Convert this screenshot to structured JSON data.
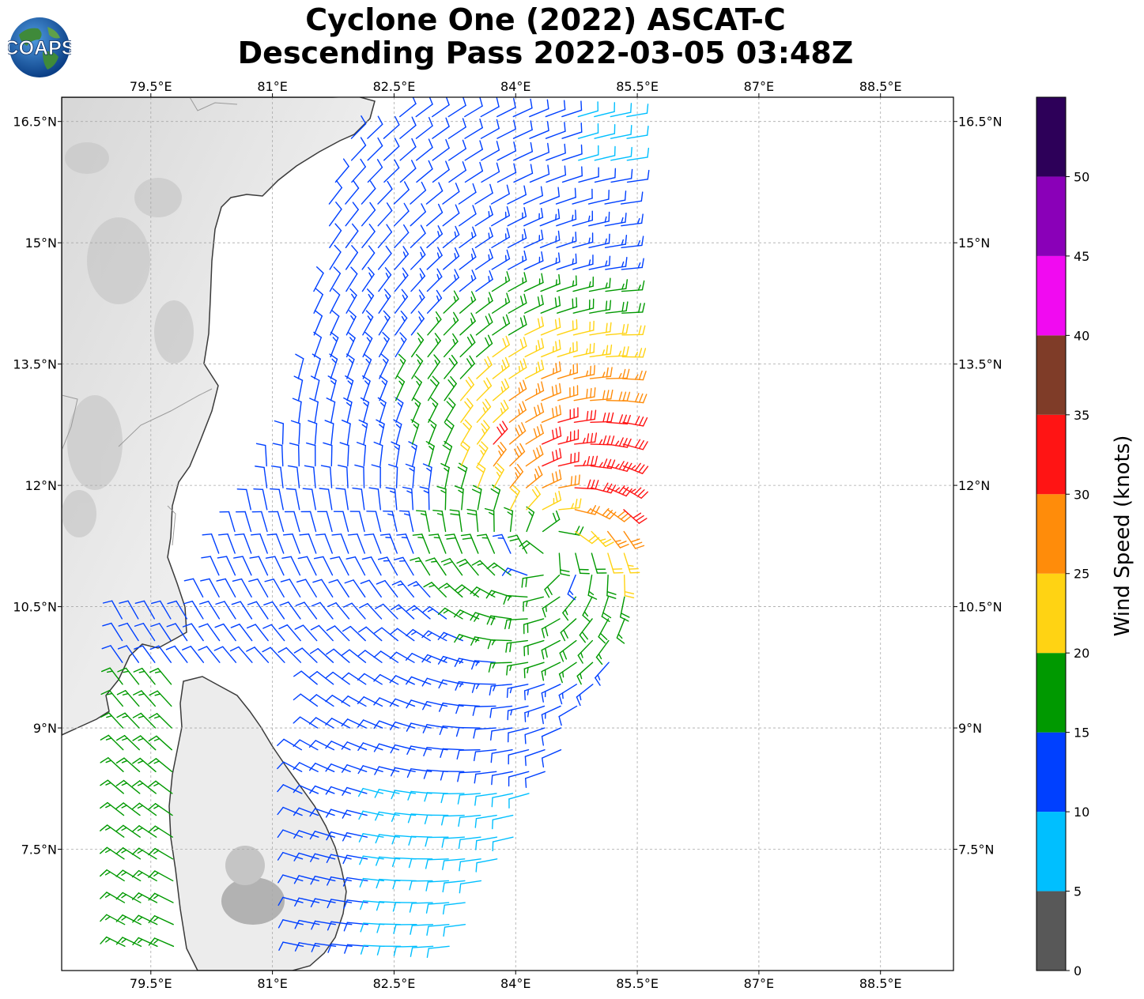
{
  "header": {
    "title_line1": "Cyclone One (2022) ASCAT-C",
    "title_line2": "Descending Pass 2022-03-05 03:48Z",
    "logo_text": "COAPS"
  },
  "map": {
    "lon_range": [
      78.4,
      89.4
    ],
    "lat_range": [
      6.0,
      16.8
    ],
    "lon_ticks": [
      "79.5°E",
      "81°E",
      "82.5°E",
      "84°E",
      "85.5°E",
      "87°E",
      "88.5°E"
    ],
    "lon_tick_values": [
      79.5,
      81,
      82.5,
      84,
      85.5,
      87,
      88.5
    ],
    "lat_ticks": [
      "16.5°N",
      "15°N",
      "13.5°N",
      "12°N",
      "10.5°N",
      "9°N",
      "7.5°N"
    ],
    "lat_tick_values": [
      16.5,
      15,
      13.5,
      12,
      10.5,
      9,
      7.5
    ],
    "gridlines": true,
    "storm_center": {
      "lon": 84.4,
      "lat": 11.2
    }
  },
  "colorbar": {
    "label": "Wind Speed (knots)",
    "ticks": [
      "0",
      "5",
      "10",
      "15",
      "20",
      "25",
      "30",
      "35",
      "40",
      "45",
      "50"
    ],
    "bins": [
      {
        "min": 0,
        "max": 5,
        "color": "#585858"
      },
      {
        "min": 5,
        "max": 10,
        "color": "#00bfff"
      },
      {
        "min": 10,
        "max": 15,
        "color": "#0040ff"
      },
      {
        "min": 15,
        "max": 20,
        "color": "#009900"
      },
      {
        "min": 20,
        "max": 25,
        "color": "#ffd313"
      },
      {
        "min": 25,
        "max": 30,
        "color": "#ff8c0a"
      },
      {
        "min": 30,
        "max": 35,
        "color": "#ff1414"
      },
      {
        "min": 35,
        "max": 40,
        "color": "#7f3c28"
      },
      {
        "min": 40,
        "max": 45,
        "color": "#f10af1"
      },
      {
        "min": 45,
        "max": 50,
        "color": "#8a00b8"
      },
      {
        "min": 50,
        "max": 55,
        "color": "#2d0059"
      }
    ]
  },
  "chart_data": {
    "type": "wind_barbs",
    "title": "Cyclone One (2022) ASCAT-C Descending Pass 2022-03-05 03:48Z",
    "units": "knots",
    "color_scale": "Wind Speed (knots)",
    "xlim": [
      78.4,
      89.4
    ],
    "ylim": [
      6.0,
      16.8
    ]
  }
}
